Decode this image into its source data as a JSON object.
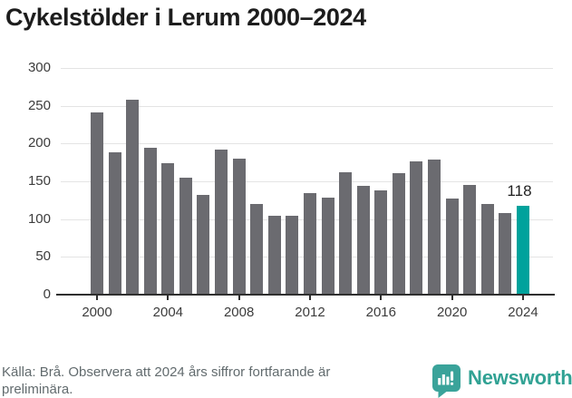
{
  "title": "Cykelstölder i Lerum 2000–2024",
  "chart_data": {
    "type": "bar",
    "title": "Cykelstölder i Lerum 2000–2024",
    "x": [
      2000,
      2001,
      2002,
      2003,
      2004,
      2005,
      2006,
      2007,
      2008,
      2009,
      2010,
      2011,
      2012,
      2013,
      2014,
      2015,
      2016,
      2017,
      2018,
      2019,
      2020,
      2021,
      2022,
      2023,
      2024
    ],
    "values": [
      241,
      188,
      258,
      195,
      174,
      155,
      132,
      192,
      180,
      120,
      104,
      105,
      134,
      129,
      162,
      144,
      138,
      161,
      177,
      179,
      127,
      145,
      120,
      108,
      118
    ],
    "bar_color": "#6b6b70",
    "highlight_index": 24,
    "highlight_color": "#00a29c",
    "annotation": {
      "text": "118"
    },
    "ylim": [
      0,
      300
    ],
    "y_ticks": [
      0,
      50,
      100,
      150,
      200,
      250,
      300
    ],
    "x_tick_labels": [
      2000,
      2004,
      2008,
      2012,
      2016,
      2020,
      2024
    ],
    "grid": "horizontal",
    "legend": "none",
    "xlabel": "",
    "ylabel": ""
  },
  "footer": {
    "lines": [
      "Källa: Brå. Observera att 2024 års siffror fortfarande är",
      "preliminära."
    ]
  },
  "logo": {
    "label": "Newsworthy",
    "color": "#31a294"
  }
}
